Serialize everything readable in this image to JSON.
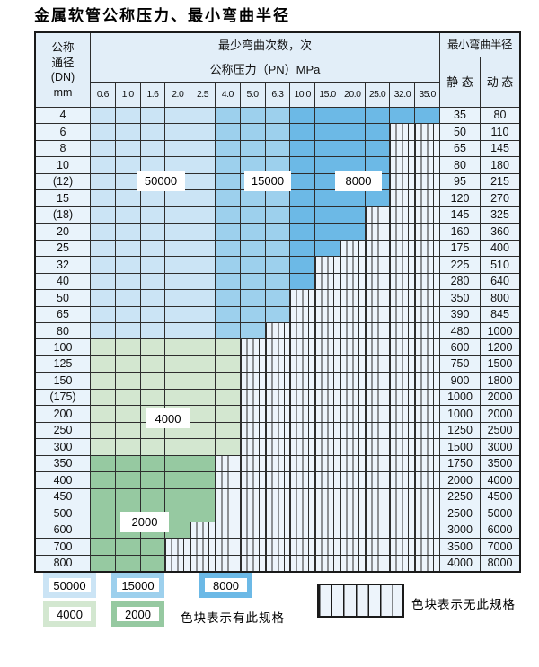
{
  "title": "金属软管公称压力、最小弯曲半径",
  "colors": {
    "c50000": "#cbe4f5",
    "c15000": "#9dd0ed",
    "c8000": "#6cb9e6",
    "c4000": "#d3e7d0",
    "c2000": "#96c9a1",
    "header_bg": "#e2eef8",
    "side_bg": "#e9f3fb",
    "hatch_bg": "#edf4fb",
    "grid_line": "#2d2d2d"
  },
  "table": {
    "dn_col_header": [
      "公称",
      "通径",
      "(DN)",
      "mm"
    ],
    "bend_header": "最少弯曲次数，次",
    "pn_header": "公称压力（PN）MPa",
    "radius_header": "最小弯曲半径",
    "static_header": "静 态",
    "dynamic_header": "动 态",
    "pressures": [
      "0.6",
      "1.0",
      "1.6",
      "2.0",
      "2.5",
      "4.0",
      "5.0",
      "6.3",
      "10.0",
      "15.0",
      "20.0",
      "25.0",
      "32.0",
      "35.0"
    ],
    "bend_count_regions": [
      {
        "value": "50000",
        "pressure_cols": [
          "0.6",
          "1.0",
          "1.6",
          "2.0",
          "2.5"
        ]
      },
      {
        "value": "15000",
        "pressure_cols": [
          "4.0",
          "5.0",
          "6.3"
        ]
      },
      {
        "value": "8000",
        "pressure_cols": [
          "10.0",
          "15.0",
          "20.0",
          "25.0",
          "32.0",
          "35.0"
        ]
      },
      {
        "value": "4000",
        "dn_rows": [
          "100",
          "125",
          "150",
          "(175)",
          "200",
          "250",
          "300"
        ]
      },
      {
        "value": "2000",
        "dn_rows": [
          "350",
          "400",
          "450",
          "500",
          "600",
          "700",
          "800"
        ]
      }
    ],
    "blue_col_thresholds": {
      "c50000_max_idx": 4,
      "c15000_max_idx": 7
    },
    "rows": [
      {
        "dn": "4",
        "palette": "blue",
        "colored": 14,
        "static": "35",
        "dynamic": "80"
      },
      {
        "dn": "6",
        "palette": "blue",
        "colored": 12,
        "static": "50",
        "dynamic": "110"
      },
      {
        "dn": "8",
        "palette": "blue",
        "colored": 12,
        "static": "65",
        "dynamic": "145"
      },
      {
        "dn": "10",
        "palette": "blue",
        "colored": 12,
        "static": "80",
        "dynamic": "180"
      },
      {
        "dn": "(12)",
        "palette": "blue",
        "colored": 12,
        "static": "95",
        "dynamic": "215"
      },
      {
        "dn": "15",
        "palette": "blue",
        "colored": 12,
        "static": "120",
        "dynamic": "270"
      },
      {
        "dn": "(18)",
        "palette": "blue",
        "colored": 11,
        "static": "145",
        "dynamic": "325"
      },
      {
        "dn": "20",
        "palette": "blue",
        "colored": 11,
        "static": "160",
        "dynamic": "360"
      },
      {
        "dn": "25",
        "palette": "blue",
        "colored": 10,
        "static": "175",
        "dynamic": "400"
      },
      {
        "dn": "32",
        "palette": "blue",
        "colored": 9,
        "static": "225",
        "dynamic": "510"
      },
      {
        "dn": "40",
        "palette": "blue",
        "colored": 9,
        "static": "280",
        "dynamic": "640"
      },
      {
        "dn": "50",
        "palette": "blue",
        "colored": 8,
        "static": "350",
        "dynamic": "800"
      },
      {
        "dn": "65",
        "palette": "blue",
        "colored": 8,
        "static": "390",
        "dynamic": "845"
      },
      {
        "dn": "80",
        "palette": "blue",
        "colored": 7,
        "static": "480",
        "dynamic": "1000"
      },
      {
        "dn": "100",
        "palette": "g4000",
        "colored": 6,
        "static": "600",
        "dynamic": "1200"
      },
      {
        "dn": "125",
        "palette": "g4000",
        "colored": 6,
        "static": "750",
        "dynamic": "1500"
      },
      {
        "dn": "150",
        "palette": "g4000",
        "colored": 6,
        "static": "900",
        "dynamic": "1800"
      },
      {
        "dn": "(175)",
        "palette": "g4000",
        "colored": 6,
        "static": "1000",
        "dynamic": "2000"
      },
      {
        "dn": "200",
        "palette": "g4000",
        "colored": 6,
        "static": "1000",
        "dynamic": "2000"
      },
      {
        "dn": "250",
        "palette": "g4000",
        "colored": 6,
        "static": "1250",
        "dynamic": "2500"
      },
      {
        "dn": "300",
        "palette": "g4000",
        "colored": 6,
        "static": "1500",
        "dynamic": "3000"
      },
      {
        "dn": "350",
        "palette": "g2000",
        "colored": 5,
        "static": "1750",
        "dynamic": "3500"
      },
      {
        "dn": "400",
        "palette": "g2000",
        "colored": 5,
        "static": "2000",
        "dynamic": "4000"
      },
      {
        "dn": "450",
        "palette": "g2000",
        "colored": 5,
        "static": "2250",
        "dynamic": "4500"
      },
      {
        "dn": "500",
        "palette": "g2000",
        "colored": 5,
        "static": "2500",
        "dynamic": "5000"
      },
      {
        "dn": "600",
        "palette": "g2000",
        "colored": 4,
        "static": "3000",
        "dynamic": "6000"
      },
      {
        "dn": "700",
        "palette": "g2000",
        "colored": 3,
        "static": "3500",
        "dynamic": "7000"
      },
      {
        "dn": "800",
        "palette": "g2000",
        "colored": 3,
        "static": "4000",
        "dynamic": "8000"
      }
    ],
    "region_labels": {
      "l50000": "50000",
      "l15000": "15000",
      "l8000": "8000",
      "l4000": "4000",
      "l2000": "2000"
    }
  },
  "legend": {
    "sw50000": "50000",
    "sw15000": "15000",
    "sw8000": "8000",
    "sw4000": "4000",
    "sw2000": "2000",
    "has_spec_text": "色块表示有此规格",
    "no_spec_text": "色块表示无此规格"
  }
}
